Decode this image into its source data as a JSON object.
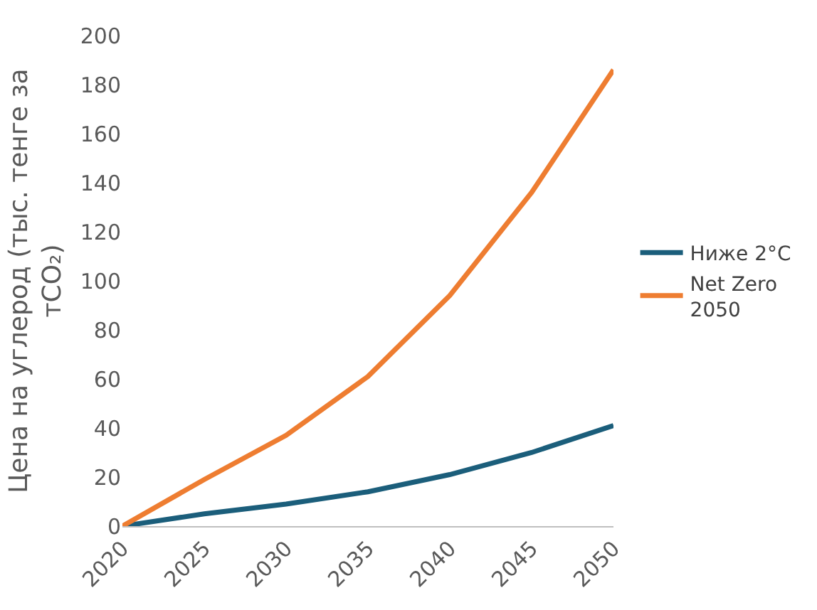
{
  "chart_data": {
    "type": "line",
    "ylabel": "Цена на углерод (тыс. тенге за тCO₂)",
    "categories": [
      "2020",
      "2025",
      "2030",
      "2035",
      "2040",
      "2045",
      "2050"
    ],
    "series": [
      {
        "name": "Ниже 2°C",
        "color": "#1b5e7b",
        "values": [
          0,
          5,
          9,
          14,
          21,
          30,
          41
        ]
      },
      {
        "name": "Net Zero 2050",
        "color": "#ee7d31",
        "values": [
          0,
          19,
          37,
          61,
          94,
          136,
          186
        ]
      }
    ],
    "ylim": [
      0,
      200
    ],
    "yticks": [
      0,
      20,
      40,
      60,
      80,
      100,
      120,
      140,
      160,
      180,
      200
    ],
    "legend": "right",
    "marker": "none",
    "line_style": "solid"
  }
}
